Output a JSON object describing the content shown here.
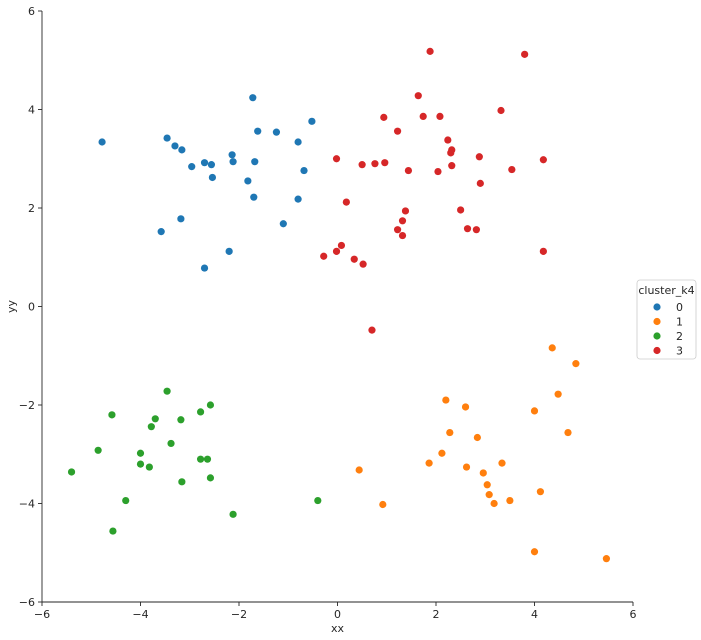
{
  "chart_data": {
    "type": "scatter",
    "title": "",
    "xlabel": "xx",
    "ylabel": "yy",
    "xlim": [
      -6,
      6
    ],
    "ylim": [
      -6,
      6
    ],
    "xticks": [
      -6,
      -4,
      -2,
      0,
      2,
      4,
      6
    ],
    "yticks": [
      -6,
      -4,
      -2,
      0,
      2,
      4,
      6
    ],
    "grid": false,
    "legend": {
      "title": "cluster_k4",
      "placement": "right",
      "entries": [
        "0",
        "1",
        "2",
        "3"
      ]
    },
    "series": [
      {
        "name": "0",
        "color": "#1f77b4",
        "points": [
          [
            -4.78,
            3.34
          ],
          [
            -3.46,
            3.42
          ],
          [
            -3.3,
            3.26
          ],
          [
            -3.16,
            3.18
          ],
          [
            -2.96,
            2.84
          ],
          [
            -2.7,
            2.92
          ],
          [
            -2.56,
            2.88
          ],
          [
            -2.54,
            2.62
          ],
          [
            -2.14,
            3.08
          ],
          [
            -2.12,
            2.94
          ],
          [
            -1.82,
            2.55
          ],
          [
            -1.72,
            4.24
          ],
          [
            -1.68,
            2.94
          ],
          [
            -1.62,
            3.56
          ],
          [
            -1.24,
            3.54
          ],
          [
            -0.8,
            3.34
          ],
          [
            -0.52,
            3.76
          ],
          [
            -0.68,
            2.76
          ],
          [
            -1.7,
            2.22
          ],
          [
            -0.8,
            2.18
          ],
          [
            -1.1,
            1.68
          ],
          [
            -3.18,
            1.78
          ],
          [
            -3.58,
            1.52
          ],
          [
            -2.2,
            1.12
          ],
          [
            -2.7,
            0.78
          ]
        ]
      },
      {
        "name": "1",
        "color": "#ff7f0e",
        "points": [
          [
            4.36,
            -0.84
          ],
          [
            4.84,
            -1.16
          ],
          [
            4.48,
            -1.78
          ],
          [
            2.2,
            -1.9
          ],
          [
            2.6,
            -2.04
          ],
          [
            4.0,
            -2.12
          ],
          [
            4.68,
            -2.56
          ],
          [
            2.28,
            -2.56
          ],
          [
            2.84,
            -2.66
          ],
          [
            2.12,
            -2.98
          ],
          [
            1.86,
            -3.18
          ],
          [
            2.62,
            -3.26
          ],
          [
            3.34,
            -3.18
          ],
          [
            2.96,
            -3.38
          ],
          [
            0.44,
            -3.32
          ],
          [
            3.04,
            -3.62
          ],
          [
            3.08,
            -3.82
          ],
          [
            3.18,
            -4.0
          ],
          [
            3.5,
            -3.94
          ],
          [
            4.12,
            -3.76
          ],
          [
            0.92,
            -4.02
          ],
          [
            4.0,
            -4.98
          ],
          [
            5.46,
            -5.12
          ]
        ]
      },
      {
        "name": "2",
        "color": "#2ca02c",
        "points": [
          [
            -3.46,
            -1.72
          ],
          [
            -2.58,
            -2.0
          ],
          [
            -4.58,
            -2.2
          ],
          [
            -2.78,
            -2.14
          ],
          [
            -3.7,
            -2.28
          ],
          [
            -3.18,
            -2.3
          ],
          [
            -3.78,
            -2.44
          ],
          [
            -3.38,
            -2.78
          ],
          [
            -4.86,
            -2.92
          ],
          [
            -4.0,
            -2.98
          ],
          [
            -2.78,
            -3.1
          ],
          [
            -2.64,
            -3.1
          ],
          [
            -4.0,
            -3.2
          ],
          [
            -3.82,
            -3.26
          ],
          [
            -5.4,
            -3.36
          ],
          [
            -2.58,
            -3.48
          ],
          [
            -3.16,
            -3.56
          ],
          [
            -4.3,
            -3.94
          ],
          [
            -0.4,
            -3.94
          ],
          [
            -2.12,
            -4.22
          ],
          [
            -4.56,
            -4.56
          ]
        ]
      },
      {
        "name": "3",
        "color": "#d62728",
        "points": [
          [
            1.88,
            5.18
          ],
          [
            3.8,
            5.12
          ],
          [
            1.64,
            4.28
          ],
          [
            1.74,
            3.86
          ],
          [
            2.08,
            3.86
          ],
          [
            3.32,
            3.98
          ],
          [
            0.94,
            3.84
          ],
          [
            1.22,
            3.56
          ],
          [
            2.24,
            3.38
          ],
          [
            2.3,
            3.12
          ],
          [
            2.32,
            3.18
          ],
          [
            -0.02,
            3.0
          ],
          [
            0.5,
            2.88
          ],
          [
            0.76,
            2.9
          ],
          [
            0.96,
            2.92
          ],
          [
            1.44,
            2.76
          ],
          [
            2.04,
            2.74
          ],
          [
            2.32,
            2.86
          ],
          [
            2.88,
            3.04
          ],
          [
            4.18,
            2.98
          ],
          [
            3.54,
            2.78
          ],
          [
            2.9,
            2.5
          ],
          [
            0.18,
            2.12
          ],
          [
            1.38,
            1.94
          ],
          [
            2.5,
            1.96
          ],
          [
            1.32,
            1.74
          ],
          [
            1.22,
            1.56
          ],
          [
            1.32,
            1.44
          ],
          [
            2.64,
            1.58
          ],
          [
            2.82,
            1.56
          ],
          [
            0.08,
            1.24
          ],
          [
            -0.02,
            1.12
          ],
          [
            -0.28,
            1.02
          ],
          [
            0.34,
            0.96
          ],
          [
            0.52,
            0.86
          ],
          [
            4.18,
            1.12
          ],
          [
            0.7,
            -0.48
          ]
        ]
      }
    ]
  }
}
